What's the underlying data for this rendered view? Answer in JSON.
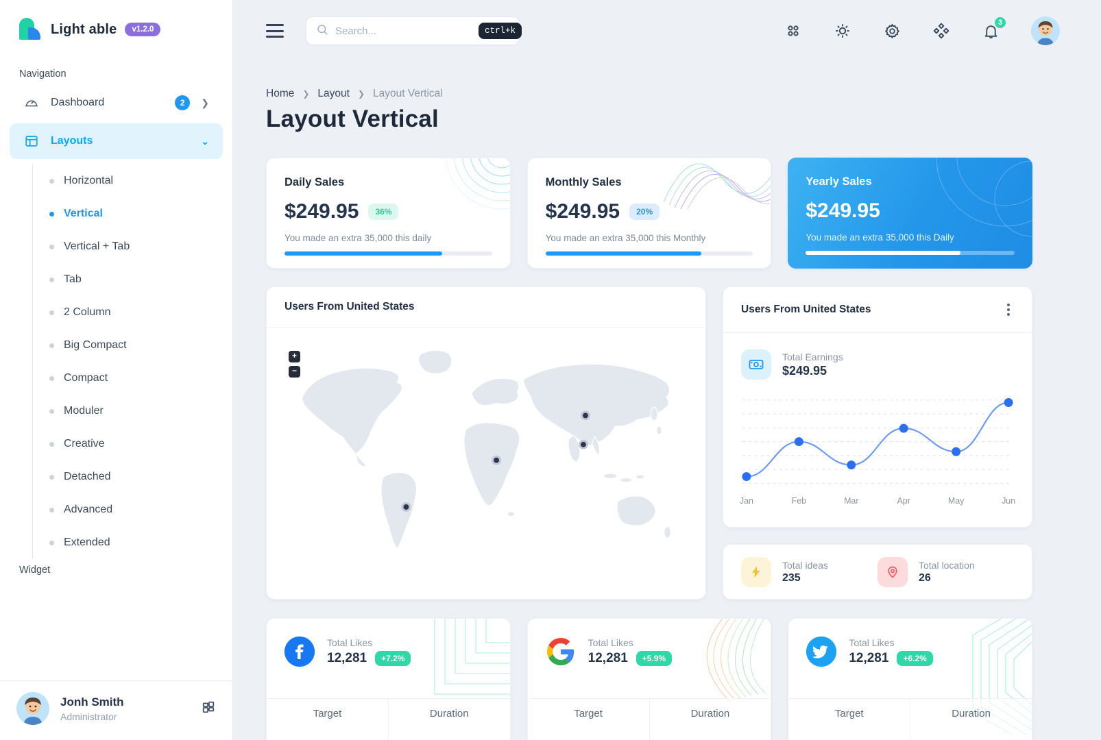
{
  "app": {
    "name": "Light able",
    "version": "v1.2.0"
  },
  "header": {
    "search_placeholder": "Search...",
    "search_shortcut": "ctrl+k",
    "notification_count": "3"
  },
  "sidebar": {
    "section_navigation": "Navigation",
    "section_widget": "Widget",
    "dashboard_label": "Dashboard",
    "dashboard_badge": "2",
    "layouts_label": "Layouts",
    "layout_items": [
      {
        "label": "Horizontal"
      },
      {
        "label": "Vertical"
      },
      {
        "label": "Vertical + Tab"
      },
      {
        "label": "Tab"
      },
      {
        "label": "2 Column"
      },
      {
        "label": "Big Compact"
      },
      {
        "label": "Compact"
      },
      {
        "label": "Moduler"
      },
      {
        "label": "Creative"
      },
      {
        "label": "Detached"
      },
      {
        "label": "Advanced"
      },
      {
        "label": "Extended"
      }
    ],
    "active_item": "Vertical",
    "user": {
      "name": "Jonh Smith",
      "role": "Administrator"
    }
  },
  "breadcrumb": {
    "items": [
      "Home",
      "Layout",
      "Layout Vertical"
    ]
  },
  "page_title": "Layout Vertical",
  "sales_cards": [
    {
      "title": "Daily Sales",
      "amount": "$249.95",
      "badge": "36%",
      "description": "You made an extra 35,000 this daily",
      "progress": 76
    },
    {
      "title": "Monthly Sales",
      "amount": "$249.95",
      "badge": "20%",
      "description": "You made an extra 35,000 this Monthly",
      "progress": 75
    },
    {
      "title": "Yearly Sales",
      "amount": "$249.95",
      "badge": "",
      "description": "You made an extra 35,000 this Daily",
      "progress": 74
    }
  ],
  "map_card": {
    "title": "Users From United States",
    "zoom_in": "+",
    "zoom_out": "−"
  },
  "earnings_card": {
    "title": "Users From United States",
    "label": "Total Earnings",
    "value": "$249.95",
    "chart": {
      "type": "line",
      "categories": [
        "Jan",
        "Feb",
        "Mar",
        "Apr",
        "May",
        "Jun"
      ],
      "values": [
        8,
        50,
        22,
        66,
        38,
        97
      ],
      "ylim": [
        0,
        100
      ],
      "grid": "horizontal-dashed",
      "line_color": "#6f9bef",
      "point_color": "#2b6ff0"
    }
  },
  "stats_card": {
    "ideas_label": "Total ideas",
    "ideas_value": "235",
    "location_label": "Total location",
    "location_value": "26"
  },
  "social_cards": [
    {
      "network": "Facebook",
      "label": "Total Likes",
      "value": "12,281",
      "badge": "+7.2%",
      "foot_left": "Target",
      "foot_right": "Duration"
    },
    {
      "network": "Google",
      "label": "Total Likes",
      "value": "12,281",
      "badge": "+5.9%",
      "foot_left": "Target",
      "foot_right": "Duration"
    },
    {
      "network": "Twitter",
      "label": "Total Likes",
      "value": "12,281",
      "badge": "+6.2%",
      "foot_left": "Target",
      "foot_right": "Duration"
    }
  ],
  "colors": {
    "primary": "#04a9f5",
    "link_blue": "#2196f3",
    "chart_blue": "#2b6ff0",
    "green": "#2ed8a7",
    "purple": "#8b6fdd",
    "dark": "#1e2a3a"
  }
}
